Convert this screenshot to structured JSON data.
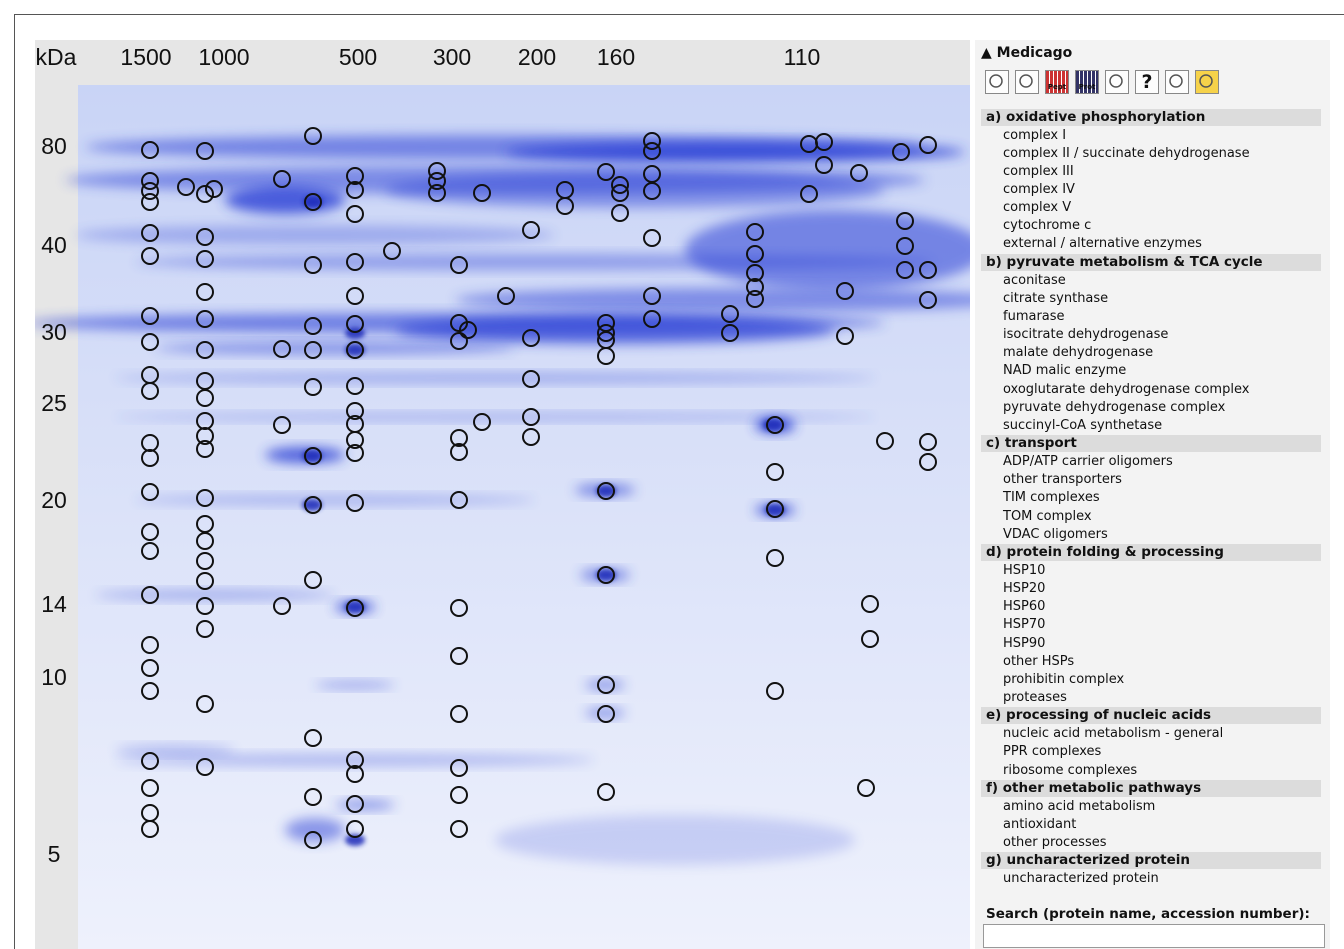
{
  "gel": {
    "y_unit": "kDa",
    "x_labels": [
      "1500",
      "1000",
      "500",
      "300",
      "200",
      "160",
      "110"
    ],
    "y_labels": [
      "80",
      "40",
      "30",
      "25",
      "20",
      "14",
      "10",
      "5"
    ]
  },
  "header": {
    "title": "Medicago"
  },
  "toolbar": {
    "labels": [
      "Pept",
      "Prot",
      "?"
    ]
  },
  "legend": {
    "sections": [
      {
        "title": "a) oxidative phosphorylation",
        "items": [
          "complex I",
          "complex II / succinate dehydrogenase",
          "complex III",
          "complex IV",
          "complex V",
          "cytochrome c",
          "external / alternative enzymes"
        ]
      },
      {
        "title": "b) pyruvate metabolism & TCA cycle",
        "items": [
          "aconitase",
          "citrate synthase",
          "fumarase",
          "isocitrate dehydrogenase",
          "malate dehydrogenase",
          "NAD malic enzyme",
          "oxoglutarate dehydrogenase complex",
          "pyruvate dehydrogenase complex",
          "succinyl-CoA synthetase"
        ]
      },
      {
        "title": "c) transport",
        "items": [
          "ADP/ATP carrier oligomers",
          "other transporters",
          "TIM complexes",
          "TOM complex",
          "VDAC oligomers"
        ]
      },
      {
        "title": "d) protein folding & processing",
        "items": [
          "HSP10",
          "HSP20",
          "HSP60",
          "HSP70",
          "HSP90",
          "other HSPs",
          "prohibitin complex",
          "proteases"
        ]
      },
      {
        "title": "e) processing of nucleic acids",
        "items": [
          "nucleic acid metabolism - general",
          "PPR complexes",
          "ribosome complexes"
        ]
      },
      {
        "title": "f) other metabolic pathways",
        "items": [
          "amino acid metabolism",
          "antioxidant",
          "other processes"
        ]
      },
      {
        "title": "g) uncharacterized protein",
        "items": [
          "uncharacterized protein"
        ]
      }
    ]
  },
  "search": {
    "label": "Search (protein name, accession number):"
  }
}
